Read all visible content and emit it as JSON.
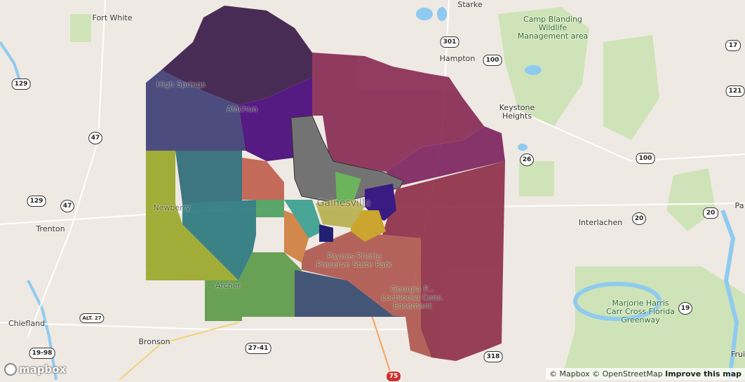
{
  "labels": {
    "fort_white": "Fort White",
    "starke": "Starke",
    "camp_blanding": "Camp Blanding\nWildlife\nManagement area",
    "hampton": "Hampton",
    "keystone": "Keystone\nHeights",
    "high_springs": "High Springs",
    "alachua": "Alachua",
    "newberry": "Newberry",
    "trenton": "Trenton",
    "gainesville": "Gainesville",
    "interlachen": "Interlachen",
    "palatka": "Pa",
    "paynes": "Paynes Prairie\nPreserve State Park",
    "archer": "Archer",
    "chiefland": "Chiefland",
    "bronson": "Bronson",
    "greenway": "Marjorie Harris\nCarr Cross Florida\nGreenway",
    "lochloosa": "Georgia P...\nLochloosa Cons.\nEasement",
    "fruitland": "Frui"
  },
  "shields": [
    "129",
    "47",
    "129",
    "47",
    "301",
    "100",
    "17",
    "121",
    "26",
    "100",
    "20",
    "20",
    "19",
    "ALT. 27",
    "19-98",
    "27-41",
    "318",
    "75"
  ],
  "regions": [
    {
      "name": "north-purple",
      "color": "#3b1c4a"
    },
    {
      "name": "west-slate",
      "color": "#3f3f77"
    },
    {
      "name": "alachua-purple",
      "color": "#4a0a7a"
    },
    {
      "name": "northeast-maroon",
      "color": "#8a2c55"
    },
    {
      "name": "east-magenta",
      "color": "#7f2560"
    },
    {
      "name": "southeast-crimson",
      "color": "#8f3048"
    },
    {
      "name": "newberry-olive",
      "color": "#9aa82a"
    },
    {
      "name": "west-teal",
      "color": "#2e6d78"
    },
    {
      "name": "southwest-teal",
      "color": "#2c7a80"
    },
    {
      "name": "small-green",
      "color": "#4ea060"
    },
    {
      "name": "west-salmon",
      "color": "#c0604f"
    },
    {
      "name": "archer-green",
      "color": "#5d9b4a"
    },
    {
      "name": "south-navy",
      "color": "#364a70"
    },
    {
      "name": "south-salmon",
      "color": "#b05850"
    },
    {
      "name": "sw-gainesville-orange",
      "color": "#d08040"
    },
    {
      "name": "sw-gainesville-teal",
      "color": "#3aa08f"
    },
    {
      "name": "gainesville-city",
      "color": "#6a6a6a"
    },
    {
      "name": "east-gainesville-indigo",
      "color": "#2a0a7a"
    },
    {
      "name": "southeast-gainesville-mustard",
      "color": "#c8a020"
    },
    {
      "name": "central-olive",
      "color": "#b8b050"
    },
    {
      "name": "south-gainesville-navy",
      "color": "#10106a"
    },
    {
      "name": "central-green",
      "color": "#60b050"
    }
  ],
  "logo": "mapbox",
  "attribution": {
    "mapbox": "© Mapbox",
    "osm": "© OpenStreetMap",
    "improve": "Improve this map"
  }
}
